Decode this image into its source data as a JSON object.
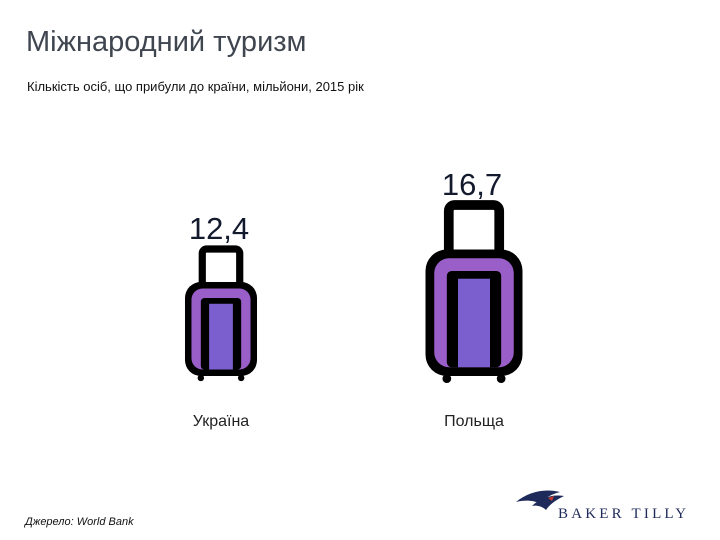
{
  "title": "Міжнародний туризм",
  "subtitle": "Кількість осіб, що прибули до країни, мільйони, 2015 рік",
  "source": "Джерело: World Bank",
  "brand": {
    "name": "BAKER TILLY",
    "color": "#1e2a5a",
    "accent": "#c0392b"
  },
  "colors": {
    "outline": "#000000",
    "frame": "#9a5ec9",
    "body": "#7b5fce"
  },
  "chart_data": {
    "type": "bar",
    "icon": "suitcase",
    "categories": [
      "Україна",
      "Польща"
    ],
    "values": [
      12.4,
      16.7
    ],
    "labels": [
      "12,4",
      "16,7"
    ],
    "title": "Міжнародний туризм",
    "subtitle": "Кількість осіб, що прибули до країни, мільйони, 2015 рік",
    "xlabel": "",
    "ylabel": "",
    "grid": false,
    "legend": "none"
  }
}
